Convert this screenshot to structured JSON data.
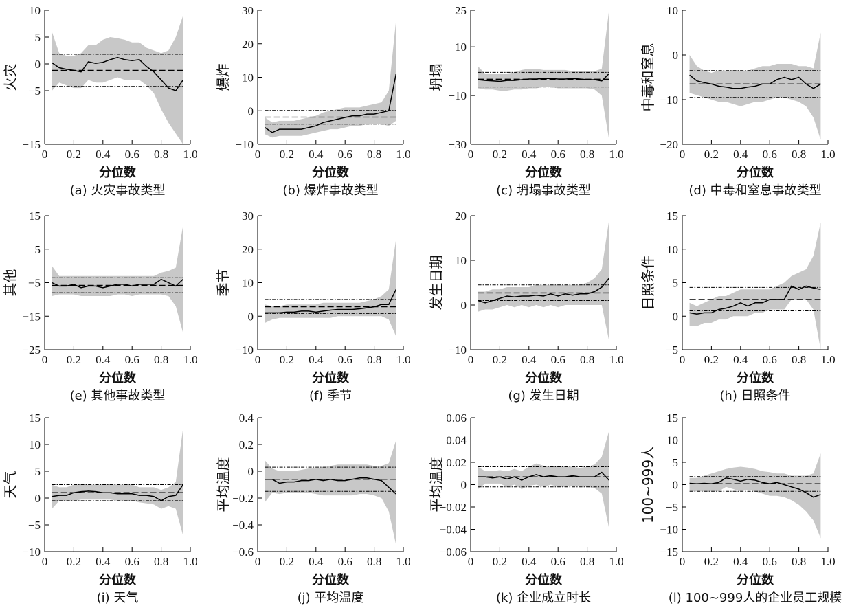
{
  "figure": {
    "x_label": "分位数",
    "x_ticks": [
      "0",
      "0.2",
      "0.4",
      "0.6",
      "0.8",
      "1.0"
    ],
    "colors": {
      "band": "#c8c8c8",
      "line": "#000000",
      "axis": "#000000"
    }
  },
  "chart_data": [
    {
      "type": "line",
      "panel": "a",
      "ylabel": "火灾",
      "caption": "(a) 火灾事故类型",
      "xlim": [
        0,
        1
      ],
      "ylim": [
        -15,
        10
      ],
      "yticks": [
        -15,
        -5,
        0,
        5,
        10
      ],
      "ytick_labels": [
        "−15",
        "−5",
        "0",
        "5",
        "10"
      ],
      "x": [
        0.05,
        0.1,
        0.15,
        0.2,
        0.25,
        0.3,
        0.35,
        0.4,
        0.45,
        0.5,
        0.55,
        0.6,
        0.65,
        0.7,
        0.75,
        0.8,
        0.85,
        0.9,
        0.95
      ],
      "estimate": [
        0.2,
        -0.7,
        -1.0,
        -1.2,
        -1.5,
        0.4,
        0.1,
        0.3,
        0.8,
        1.2,
        0.8,
        0.6,
        0.8,
        -0.5,
        -1.5,
        -3.0,
        -4.5,
        -5.0,
        -3.0
      ],
      "ci_upper": [
        6.0,
        2.0,
        1.5,
        1.5,
        2.0,
        3.5,
        3.5,
        4.5,
        5.0,
        4.8,
        4.5,
        4.0,
        4.0,
        3.0,
        2.5,
        2.0,
        2.5,
        5.0,
        9.0
      ],
      "ci_lower": [
        -5.0,
        -3.5,
        -4.0,
        -4.5,
        -4.5,
        -3.0,
        -3.5,
        -3.5,
        -3.0,
        -2.5,
        -3.0,
        -3.0,
        -3.0,
        -4.0,
        -5.5,
        -8.5,
        -11.0,
        -13.0,
        -15.0
      ],
      "ols": -1.2,
      "ols_ci": [
        -4.2,
        1.8
      ]
    },
    {
      "type": "line",
      "panel": "b",
      "ylabel": "爆炸",
      "caption": "(b) 爆炸事故类型",
      "xlim": [
        0,
        1
      ],
      "ylim": [
        -10,
        30
      ],
      "yticks": [
        -10,
        0,
        10,
        20,
        30
      ],
      "ytick_labels": [
        "−10",
        "0",
        "10",
        "20",
        "30"
      ],
      "x": [
        0.05,
        0.1,
        0.15,
        0.2,
        0.25,
        0.3,
        0.35,
        0.4,
        0.45,
        0.5,
        0.55,
        0.6,
        0.65,
        0.7,
        0.75,
        0.8,
        0.85,
        0.9,
        0.95
      ],
      "estimate": [
        -5.0,
        -6.5,
        -5.5,
        -5.5,
        -5.5,
        -5.5,
        -5.0,
        -4.5,
        -3.5,
        -3.0,
        -2.5,
        -2.0,
        -1.5,
        -1.5,
        -1.0,
        -1.0,
        -0.5,
        0.0,
        11.0
      ],
      "ci_upper": [
        -2.0,
        -3.5,
        -3.0,
        -3.0,
        -3.0,
        -2.5,
        -2.0,
        -1.5,
        -0.5,
        0.0,
        0.5,
        1.0,
        1.0,
        1.0,
        1.5,
        2.0,
        2.5,
        6.0,
        27.0
      ],
      "ci_lower": [
        -7.0,
        -8.0,
        -7.5,
        -7.5,
        -7.5,
        -7.5,
        -7.0,
        -6.5,
        -6.0,
        -5.5,
        -5.5,
        -5.0,
        -4.5,
        -4.5,
        -4.0,
        -4.0,
        -4.0,
        -4.5,
        -3.0
      ],
      "ols": -1.9,
      "ols_ci": [
        -4.0,
        0.1
      ]
    },
    {
      "type": "line",
      "panel": "c",
      "ylabel": "坍塌",
      "caption": "(c) 坍塌事故类型",
      "xlim": [
        0,
        1
      ],
      "ylim": [
        -30,
        25
      ],
      "yticks": [
        -30,
        -10,
        10,
        25
      ],
      "ytick_labels": [
        "−30",
        "−10",
        "10",
        "25"
      ],
      "x": [
        0.05,
        0.1,
        0.15,
        0.2,
        0.25,
        0.3,
        0.35,
        0.4,
        0.45,
        0.5,
        0.55,
        0.6,
        0.65,
        0.7,
        0.75,
        0.8,
        0.85,
        0.9,
        0.95
      ],
      "estimate": [
        -3.5,
        -3.8,
        -4.0,
        -4.2,
        -3.8,
        -3.8,
        -3.5,
        -3.2,
        -3.2,
        -3.0,
        -3.0,
        -3.2,
        -3.2,
        -3.0,
        -3.2,
        -3.5,
        -3.5,
        -4.0,
        -1.0
      ],
      "ci_upper": [
        2.0,
        -1.0,
        -1.0,
        -1.0,
        -1.0,
        -0.5,
        0.5,
        1.0,
        1.0,
        0.5,
        0.5,
        0.5,
        0.5,
        0.0,
        0.0,
        0.0,
        0.0,
        1.0,
        25.0
      ],
      "ci_lower": [
        -7.0,
        -7.5,
        -7.5,
        -8.0,
        -8.0,
        -7.5,
        -7.5,
        -7.0,
        -7.0,
        -6.5,
        -6.5,
        -7.0,
        -7.0,
        -7.0,
        -7.0,
        -7.0,
        -7.5,
        -10.0,
        -28.0
      ],
      "ols": -3.3,
      "ols_ci": [
        -6.5,
        -0.5
      ]
    },
    {
      "type": "line",
      "panel": "d",
      "ylabel": "中毒和窒息",
      "caption": "(d) 中毒和窒息事故类型",
      "xlim": [
        0,
        1
      ],
      "ylim": [
        -20,
        10
      ],
      "yticks": [
        -20,
        -10,
        0,
        10
      ],
      "ytick_labels": [
        "−20",
        "−10",
        "0",
        "10"
      ],
      "x": [
        0.05,
        0.1,
        0.15,
        0.2,
        0.25,
        0.3,
        0.35,
        0.4,
        0.45,
        0.5,
        0.55,
        0.6,
        0.65,
        0.7,
        0.75,
        0.8,
        0.85,
        0.9,
        0.95
      ],
      "estimate": [
        -4.5,
        -5.8,
        -6.2,
        -6.5,
        -7.0,
        -7.2,
        -7.5,
        -7.5,
        -7.2,
        -7.0,
        -6.5,
        -6.5,
        -5.5,
        -5.0,
        -5.5,
        -5.0,
        -6.5,
        -7.5,
        -6.5
      ],
      "ci_upper": [
        0.0,
        -2.5,
        -3.5,
        -4.0,
        -3.5,
        -3.5,
        -3.5,
        -3.5,
        -3.5,
        -3.0,
        -2.5,
        -2.5,
        -2.0,
        -2.0,
        -2.0,
        -2.5,
        -2.5,
        -3.0,
        5.0
      ],
      "ci_lower": [
        -8.5,
        -9.0,
        -9.5,
        -10.0,
        -10.5,
        -10.5,
        -11.0,
        -11.5,
        -11.0,
        -10.5,
        -10.5,
        -10.0,
        -9.5,
        -9.5,
        -10.0,
        -10.5,
        -11.5,
        -14.0,
        -19.0
      ],
      "ols": -6.5,
      "ols_ci": [
        -9.5,
        -3.5
      ]
    },
    {
      "type": "line",
      "panel": "e",
      "ylabel": "其他",
      "caption": "(e) 其他事故类型",
      "xlim": [
        0,
        1
      ],
      "ylim": [
        -25,
        15
      ],
      "yticks": [
        -25,
        -15,
        -5,
        5,
        15
      ],
      "ytick_labels": [
        "−25",
        "−15",
        "−5",
        "5",
        "15"
      ],
      "x": [
        0.05,
        0.1,
        0.15,
        0.2,
        0.25,
        0.3,
        0.35,
        0.4,
        0.45,
        0.5,
        0.55,
        0.6,
        0.65,
        0.7,
        0.75,
        0.8,
        0.85,
        0.9,
        0.95
      ],
      "estimate": [
        -5.0,
        -6.0,
        -6.0,
        -5.5,
        -6.5,
        -6.0,
        -6.0,
        -6.5,
        -6.0,
        -5.5,
        -5.5,
        -6.0,
        -5.5,
        -5.5,
        -5.5,
        -4.0,
        -5.0,
        -6.0,
        -4.0
      ],
      "ci_upper": [
        0.0,
        -3.0,
        -3.0,
        -3.0,
        -3.0,
        -3.0,
        -3.0,
        -3.0,
        -3.0,
        -3.0,
        -3.0,
        -3.0,
        -3.0,
        -3.0,
        -3.0,
        -2.0,
        -1.5,
        -0.5,
        12.0
      ],
      "ci_lower": [
        -9.0,
        -8.5,
        -8.5,
        -8.5,
        -9.0,
        -9.0,
        -9.0,
        -9.0,
        -9.0,
        -8.5,
        -8.5,
        -9.0,
        -8.5,
        -8.5,
        -8.5,
        -8.5,
        -9.0,
        -12.0,
        -20.0
      ],
      "ols": -5.8,
      "ols_ci": [
        -8.0,
        -3.5
      ]
    },
    {
      "type": "line",
      "panel": "f",
      "ylabel": "季节",
      "caption": "(f) 季节",
      "xlim": [
        0,
        1
      ],
      "ylim": [
        -10,
        30
      ],
      "yticks": [
        -10,
        0,
        10,
        20,
        30
      ],
      "ytick_labels": [
        "−10",
        "0",
        "10",
        "20",
        "30"
      ],
      "x": [
        0.05,
        0.1,
        0.15,
        0.2,
        0.25,
        0.3,
        0.35,
        0.4,
        0.45,
        0.5,
        0.55,
        0.6,
        0.65,
        0.7,
        0.75,
        0.8,
        0.85,
        0.9,
        0.95
      ],
      "estimate": [
        1.0,
        1.0,
        1.0,
        1.2,
        1.2,
        1.5,
        1.5,
        1.2,
        1.5,
        1.8,
        2.0,
        2.0,
        2.0,
        2.2,
        2.5,
        2.8,
        3.5,
        3.5,
        8.0
      ],
      "ci_upper": [
        3.5,
        3.0,
        3.0,
        3.5,
        3.5,
        3.5,
        3.5,
        3.5,
        4.0,
        4.0,
        4.0,
        4.0,
        4.0,
        4.0,
        4.5,
        5.0,
        6.0,
        8.0,
        23.0
      ],
      "ci_lower": [
        -2.0,
        -1.0,
        -0.5,
        -0.5,
        -0.5,
        -0.5,
        -0.5,
        -0.5,
        -0.5,
        -0.5,
        0.0,
        0.0,
        0.0,
        0.0,
        0.0,
        0.0,
        0.0,
        -1.0,
        -6.0
      ],
      "ols": 2.8,
      "ols_ci": [
        0.8,
        5.0
      ]
    },
    {
      "type": "line",
      "panel": "g",
      "ylabel": "发生日期",
      "caption": "(g) 发生日期",
      "xlim": [
        0,
        1
      ],
      "ylim": [
        -10,
        20
      ],
      "yticks": [
        -10,
        0,
        10,
        20
      ],
      "ytick_labels": [
        "−10",
        "0",
        "10",
        "20"
      ],
      "x": [
        0.05,
        0.1,
        0.15,
        0.2,
        0.25,
        0.3,
        0.35,
        0.4,
        0.45,
        0.5,
        0.55,
        0.6,
        0.65,
        0.7,
        0.75,
        0.8,
        0.85,
        0.9,
        0.95
      ],
      "estimate": [
        1.0,
        0.5,
        1.0,
        1.5,
        2.0,
        1.8,
        2.0,
        2.0,
        2.2,
        2.0,
        2.5,
        2.0,
        2.5,
        2.2,
        2.5,
        2.5,
        3.0,
        4.0,
        6.0
      ],
      "ci_upper": [
        3.0,
        3.0,
        3.5,
        3.5,
        4.0,
        4.0,
        4.0,
        4.0,
        4.5,
        4.5,
        4.5,
        4.5,
        4.5,
        4.5,
        4.5,
        5.0,
        6.0,
        8.0,
        19.0
      ],
      "ci_lower": [
        -1.5,
        -1.0,
        -1.0,
        -0.5,
        0.0,
        -0.5,
        0.0,
        -0.5,
        0.0,
        -0.5,
        0.0,
        -0.5,
        0.0,
        0.0,
        0.0,
        0.0,
        0.0,
        0.0,
        -8.0
      ],
      "ols": 2.7,
      "ols_ci": [
        1.0,
        4.5
      ]
    },
    {
      "type": "line",
      "panel": "h",
      "ylabel": "日照条件",
      "caption": "(h) 日照条件",
      "xlim": [
        0,
        1
      ],
      "ylim": [
        -5,
        15
      ],
      "yticks": [
        -5,
        0,
        5,
        10,
        15
      ],
      "ytick_labels": [
        "−5",
        "0",
        "5",
        "10",
        "15"
      ],
      "x": [
        0.05,
        0.1,
        0.15,
        0.2,
        0.25,
        0.3,
        0.35,
        0.4,
        0.45,
        0.5,
        0.55,
        0.6,
        0.65,
        0.7,
        0.75,
        0.8,
        0.85,
        0.9,
        0.95
      ],
      "estimate": [
        0.5,
        0.3,
        0.5,
        0.5,
        1.0,
        1.2,
        1.5,
        2.0,
        1.5,
        2.0,
        2.0,
        2.5,
        2.5,
        2.5,
        4.5,
        4.0,
        4.5,
        4.2,
        4.0
      ],
      "ci_upper": [
        2.0,
        1.5,
        2.0,
        2.5,
        3.0,
        3.0,
        3.5,
        4.0,
        4.0,
        4.0,
        4.0,
        4.0,
        4.5,
        5.0,
        6.0,
        6.5,
        7.0,
        9.0,
        14.0
      ],
      "ci_lower": [
        -1.5,
        -1.5,
        -1.0,
        -1.0,
        -0.5,
        -0.5,
        0.0,
        0.0,
        0.0,
        0.5,
        0.5,
        1.0,
        1.0,
        1.0,
        2.5,
        2.5,
        2.5,
        1.0,
        -5.5
      ],
      "ols": 2.5,
      "ols_ci": [
        0.8,
        4.3
      ]
    },
    {
      "type": "line",
      "panel": "i",
      "ylabel": "天气",
      "caption": "(i) 天气",
      "xlim": [
        0,
        1
      ],
      "ylim": [
        -10,
        15
      ],
      "yticks": [
        -10,
        -5,
        0,
        5,
        10,
        15
      ],
      "ytick_labels": [
        "−10",
        "−5",
        "0",
        "5",
        "10",
        "15"
      ],
      "x": [
        0.05,
        0.1,
        0.15,
        0.2,
        0.25,
        0.3,
        0.35,
        0.4,
        0.45,
        0.5,
        0.55,
        0.6,
        0.65,
        0.7,
        0.75,
        0.8,
        0.85,
        0.9,
        0.95
      ],
      "estimate": [
        0.3,
        0.5,
        0.5,
        1.0,
        1.2,
        1.3,
        1.2,
        1.0,
        1.0,
        0.8,
        0.8,
        0.8,
        0.5,
        0.5,
        0.3,
        -0.5,
        0.3,
        0.5,
        2.5
      ],
      "ci_upper": [
        2.5,
        2.0,
        2.0,
        2.5,
        2.5,
        2.5,
        2.5,
        2.5,
        2.5,
        2.5,
        2.5,
        2.5,
        2.0,
        2.0,
        2.0,
        1.5,
        2.0,
        3.0,
        13.0
      ],
      "ci_lower": [
        -2.0,
        -0.5,
        -0.5,
        -0.5,
        -0.3,
        -0.3,
        -0.3,
        -0.3,
        -0.3,
        -0.5,
        -0.5,
        -0.5,
        -0.8,
        -1.0,
        -1.2,
        -2.0,
        -1.5,
        -2.0,
        -7.0
      ],
      "ols": 1.0,
      "ols_ci": [
        -0.5,
        2.5
      ]
    },
    {
      "type": "line",
      "panel": "j",
      "ylabel": "平均温度",
      "caption": "(j) 平均温度",
      "xlim": [
        0,
        1
      ],
      "ylim": [
        -0.6,
        0.4
      ],
      "yticks": [
        -0.6,
        -0.4,
        -0.2,
        0,
        0.2,
        0.4
      ],
      "ytick_labels": [
        "−0.6",
        "−0.4",
        "−0.2",
        "0",
        "0.2",
        "0.4"
      ],
      "x": [
        0.05,
        0.1,
        0.15,
        0.2,
        0.25,
        0.3,
        0.35,
        0.4,
        0.45,
        0.5,
        0.55,
        0.6,
        0.65,
        0.7,
        0.75,
        0.8,
        0.85,
        0.9,
        0.95
      ],
      "estimate": [
        -0.06,
        -0.06,
        -0.09,
        -0.08,
        -0.08,
        -0.07,
        -0.07,
        -0.06,
        -0.07,
        -0.06,
        -0.07,
        -0.07,
        -0.06,
        -0.05,
        -0.05,
        -0.06,
        -0.07,
        -0.12,
        -0.17
      ],
      "ci_upper": [
        0.08,
        0.02,
        0.0,
        0.0,
        0.0,
        0.01,
        0.02,
        0.02,
        0.03,
        0.04,
        0.05,
        0.05,
        0.05,
        0.05,
        0.05,
        0.04,
        0.04,
        0.06,
        0.23
      ],
      "ci_lower": [
        -0.23,
        -0.16,
        -0.17,
        -0.16,
        -0.16,
        -0.16,
        -0.16,
        -0.17,
        -0.18,
        -0.18,
        -0.18,
        -0.18,
        -0.18,
        -0.17,
        -0.17,
        -0.18,
        -0.2,
        -0.3,
        -0.55
      ],
      "ols": -0.06,
      "ols_ci": [
        -0.15,
        0.03
      ]
    },
    {
      "type": "line",
      "panel": "k",
      "ylabel": "平均温度",
      "caption": "(k) 企业成立时长",
      "xlim": [
        0,
        1
      ],
      "ylim": [
        -0.06,
        0.06
      ],
      "yticks": [
        -0.06,
        -0.04,
        -0.02,
        0,
        0.02,
        0.04,
        0.06
      ],
      "ytick_labels": [
        "−0.06",
        "−0.04",
        "−0.02",
        "0",
        "0.02",
        "0.04",
        "0.06"
      ],
      "x": [
        0.05,
        0.1,
        0.15,
        0.2,
        0.25,
        0.3,
        0.35,
        0.4,
        0.45,
        0.5,
        0.55,
        0.6,
        0.65,
        0.7,
        0.75,
        0.8,
        0.85,
        0.9,
        0.95
      ],
      "estimate": [
        0.007,
        0.007,
        0.006,
        0.007,
        0.005,
        0.007,
        0.004,
        0.007,
        0.009,
        0.007,
        0.008,
        0.007,
        0.007,
        0.008,
        0.007,
        0.007,
        0.007,
        0.011,
        0.004
      ],
      "ci_upper": [
        0.016,
        0.012,
        0.012,
        0.013,
        0.012,
        0.014,
        0.012,
        0.016,
        0.019,
        0.017,
        0.016,
        0.017,
        0.016,
        0.016,
        0.015,
        0.016,
        0.018,
        0.025,
        0.048
      ],
      "ci_lower": [
        -0.004,
        0.001,
        0.001,
        0.001,
        -0.002,
        0.0,
        -0.004,
        -0.001,
        0.0,
        -0.002,
        0.0,
        -0.002,
        -0.002,
        -0.001,
        -0.001,
        -0.002,
        -0.003,
        -0.008,
        -0.039
      ],
      "ols": 0.007,
      "ols_ci": [
        -0.002,
        0.016
      ]
    },
    {
      "type": "line",
      "panel": "l",
      "ylabel": "100~999人",
      "caption": "(l) 100~999人的企业员工规模",
      "xlim": [
        0,
        1
      ],
      "ylim": [
        -15,
        15
      ],
      "yticks": [
        -15,
        -10,
        -5,
        0,
        5,
        10,
        15
      ],
      "ytick_labels": [
        "−15",
        "−10",
        "−5",
        "0",
        "5",
        "10",
        "15"
      ],
      "x": [
        0.05,
        0.1,
        0.15,
        0.2,
        0.25,
        0.3,
        0.35,
        0.4,
        0.45,
        0.5,
        0.55,
        0.6,
        0.65,
        0.7,
        0.75,
        0.8,
        0.85,
        0.9,
        0.95
      ],
      "estimate": [
        0.3,
        0.2,
        0.3,
        0.2,
        0.5,
        1.5,
        1.2,
        0.8,
        1.2,
        1.0,
        0.5,
        0.2,
        0.5,
        0.0,
        -0.5,
        -1.0,
        -1.8,
        -2.8,
        -2.2
      ],
      "ci_upper": [
        1.5,
        1.5,
        2.0,
        2.5,
        3.0,
        3.5,
        3.8,
        4.0,
        3.8,
        3.5,
        3.0,
        2.8,
        2.5,
        2.5,
        2.0,
        2.0,
        2.0,
        2.5,
        7.0
      ],
      "ci_lower": [
        -1.5,
        -1.5,
        -1.5,
        -1.5,
        -1.5,
        -0.5,
        -1.0,
        -1.5,
        -1.2,
        -1.5,
        -2.0,
        -2.5,
        -2.5,
        -2.8,
        -3.5,
        -4.5,
        -6.0,
        -8.0,
        -12.0
      ],
      "ols": 0.2,
      "ols_ci": [
        -1.5,
        1.8
      ]
    }
  ]
}
